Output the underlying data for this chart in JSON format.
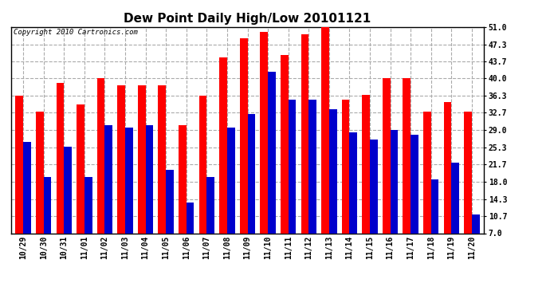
{
  "title": "Dew Point Daily High/Low 20101121",
  "copyright": "Copyright 2010 Cartronics.com",
  "categories": [
    "10/29",
    "10/30",
    "10/31",
    "11/01",
    "11/02",
    "11/03",
    "11/04",
    "11/05",
    "11/06",
    "11/07",
    "11/08",
    "11/09",
    "11/10",
    "11/11",
    "11/12",
    "11/13",
    "11/14",
    "11/15",
    "11/16",
    "11/17",
    "11/18",
    "11/19",
    "11/20"
  ],
  "highs": [
    36.3,
    33.0,
    39.0,
    34.5,
    40.0,
    38.5,
    38.5,
    38.5,
    30.0,
    36.3,
    44.5,
    48.5,
    50.0,
    45.0,
    49.5,
    51.5,
    35.5,
    36.5,
    40.0,
    40.0,
    33.0,
    35.0,
    33.0
  ],
  "lows": [
    26.5,
    19.0,
    25.5,
    19.0,
    30.0,
    29.5,
    30.0,
    20.5,
    13.5,
    19.0,
    29.5,
    32.5,
    41.5,
    35.5,
    35.5,
    33.5,
    28.5,
    27.0,
    29.0,
    28.0,
    18.5,
    22.0,
    11.0
  ],
  "ylim": [
    7.0,
    51.0
  ],
  "yticks": [
    7.0,
    10.7,
    14.3,
    18.0,
    21.7,
    25.3,
    29.0,
    32.7,
    36.3,
    40.0,
    43.7,
    47.3,
    51.0
  ],
  "high_color": "#ff0000",
  "low_color": "#0000cc",
  "bg_color": "#ffffff",
  "grid_color": "#aaaaaa",
  "bar_width": 0.38,
  "title_fontsize": 11,
  "copyright_fontsize": 6.5
}
